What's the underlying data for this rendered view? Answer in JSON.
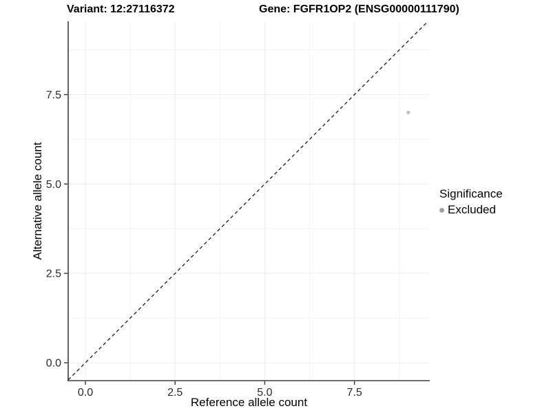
{
  "title": {
    "variant": "Variant: 12:27116372",
    "gene": "Gene: FGFR1OP2 (ENSG00000111790)"
  },
  "axes": {
    "x_label": "Reference allele count",
    "y_label": "Alternative allele count"
  },
  "legend": {
    "title": "Significance",
    "items": [
      {
        "label": "Excluded",
        "color": "#a0a0a0"
      }
    ]
  },
  "chart_data": {
    "type": "scatter",
    "title": "Variant: 12:27116372   Gene: FGFR1OP2 (ENSG00000111790)",
    "xlabel": "Reference allele count",
    "ylabel": "Alternative allele count",
    "xlim": [
      -0.48,
      9.6
    ],
    "ylim": [
      -0.5,
      9.55
    ],
    "x_ticks": [
      0,
      2.5,
      5,
      7.5
    ],
    "y_ticks": [
      0,
      2.5,
      5,
      7.5
    ],
    "x_tick_labels": [
      "0.0",
      "2.5",
      "5.0",
      "7.5"
    ],
    "y_tick_labels": [
      "0.0",
      "2.5",
      "5.0",
      "7.5"
    ],
    "x_minor_ticks": [
      1.25,
      3.75,
      6.25,
      8.75
    ],
    "y_minor_ticks": [
      1.25,
      3.75,
      6.25,
      8.75
    ],
    "grid": true,
    "legend_position": "right",
    "series": [
      {
        "name": "Excluded",
        "points": [
          {
            "x": 9,
            "y": 7
          }
        ],
        "color": "#bdbdbd",
        "marker_radius": 2.5
      }
    ],
    "reference_line": {
      "slope": 1,
      "intercept": 0,
      "style": "dashed",
      "color": "#1a1a1a"
    }
  },
  "colors": {
    "grid_major": "#ebebeb",
    "grid_minor": "#f4f4f4",
    "axis_line": "#3c3c3c",
    "tick_mark": "#333333",
    "tick_label": "#2b2b2b"
  }
}
